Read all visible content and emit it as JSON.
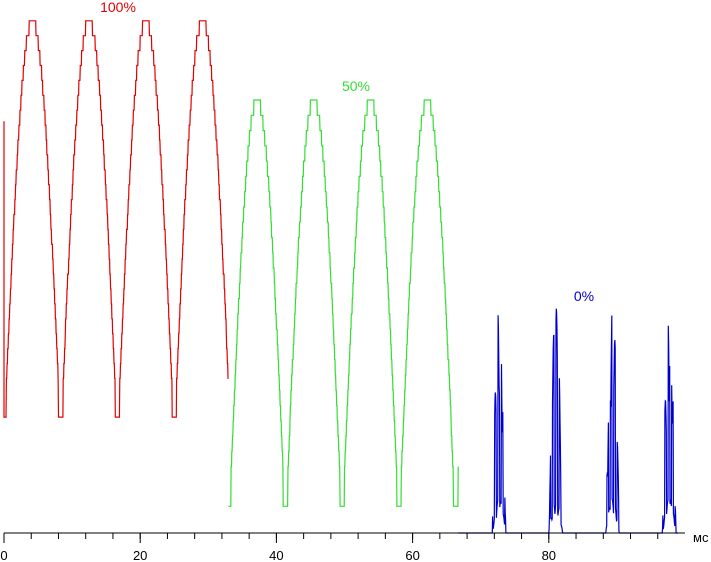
{
  "chart_data": {
    "type": "line",
    "title": "",
    "xlabel": "мс",
    "ylabel": "",
    "xlim": [
      0,
      100
    ],
    "ylim": [
      0,
      100
    ],
    "x_ticks": [
      0,
      20,
      40,
      60,
      80
    ],
    "x_minor_step": 4,
    "grid": false,
    "legend": "none",
    "series": [
      {
        "name": "100%",
        "color": "#e00000",
        "x_range": [
          0,
          33
        ],
        "period": 8.33,
        "shape": "rectified-sine-stepped",
        "min": 18,
        "max": 97,
        "start": 78
      },
      {
        "name": "50%",
        "color": "#33dd33",
        "x_range": [
          33,
          66.7
        ],
        "period": 8.33,
        "shape": "rectified-sine-stepped",
        "min": 1,
        "max": 82,
        "start": 5
      },
      {
        "name": "0%",
        "color": "#0000cc",
        "x_range": [
          66.7,
          99
        ],
        "period": 8.33,
        "shape": "pwm-spikes",
        "min": 0,
        "max": 43,
        "start": 0
      }
    ]
  }
}
